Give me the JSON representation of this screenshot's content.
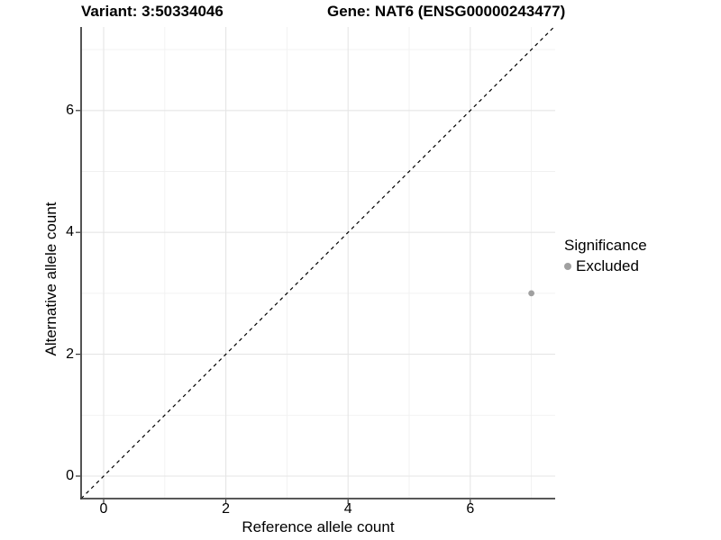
{
  "header": {
    "variant_title": "Variant: 3:50334046",
    "gene_title": "Gene: NAT6 (ENSG00000243477)"
  },
  "chart_data": {
    "type": "scatter",
    "title": "Variant: 3:50334046   Gene: NAT6 (ENSG00000243477)",
    "xlabel": "Reference allele count",
    "ylabel": "Alternative allele count",
    "x_ticks": [
      0,
      2,
      4,
      6
    ],
    "y_ticks": [
      0,
      2,
      4,
      6
    ],
    "x_minor_ticks": [
      1,
      3,
      5,
      7
    ],
    "y_minor_ticks": [
      1,
      3,
      5,
      7
    ],
    "xlim": [
      -0.37,
      7.39
    ],
    "ylim": [
      -0.35,
      7.37
    ],
    "grid": "major and minor, light grey on white panel",
    "identity_line": {
      "equation": "y = x",
      "style": "dashed",
      "color": "#000000"
    },
    "legend": {
      "title": "Significance",
      "position": "right",
      "entries": [
        {
          "label": "Excluded",
          "marker": "circle",
          "color": "#a0a0a0"
        }
      ]
    },
    "series": [
      {
        "name": "Excluded",
        "color": "#a0a0a0",
        "points": [
          {
            "x": 7,
            "y": 3
          }
        ]
      }
    ]
  },
  "colors": {
    "background": "#ffffff",
    "grid_major": "#e5e5e5",
    "grid_minor": "#f1f1f1",
    "axis_line": "#404040",
    "tick_mark": "#333333",
    "text": "#000000",
    "point": "#a0a0a0"
  }
}
